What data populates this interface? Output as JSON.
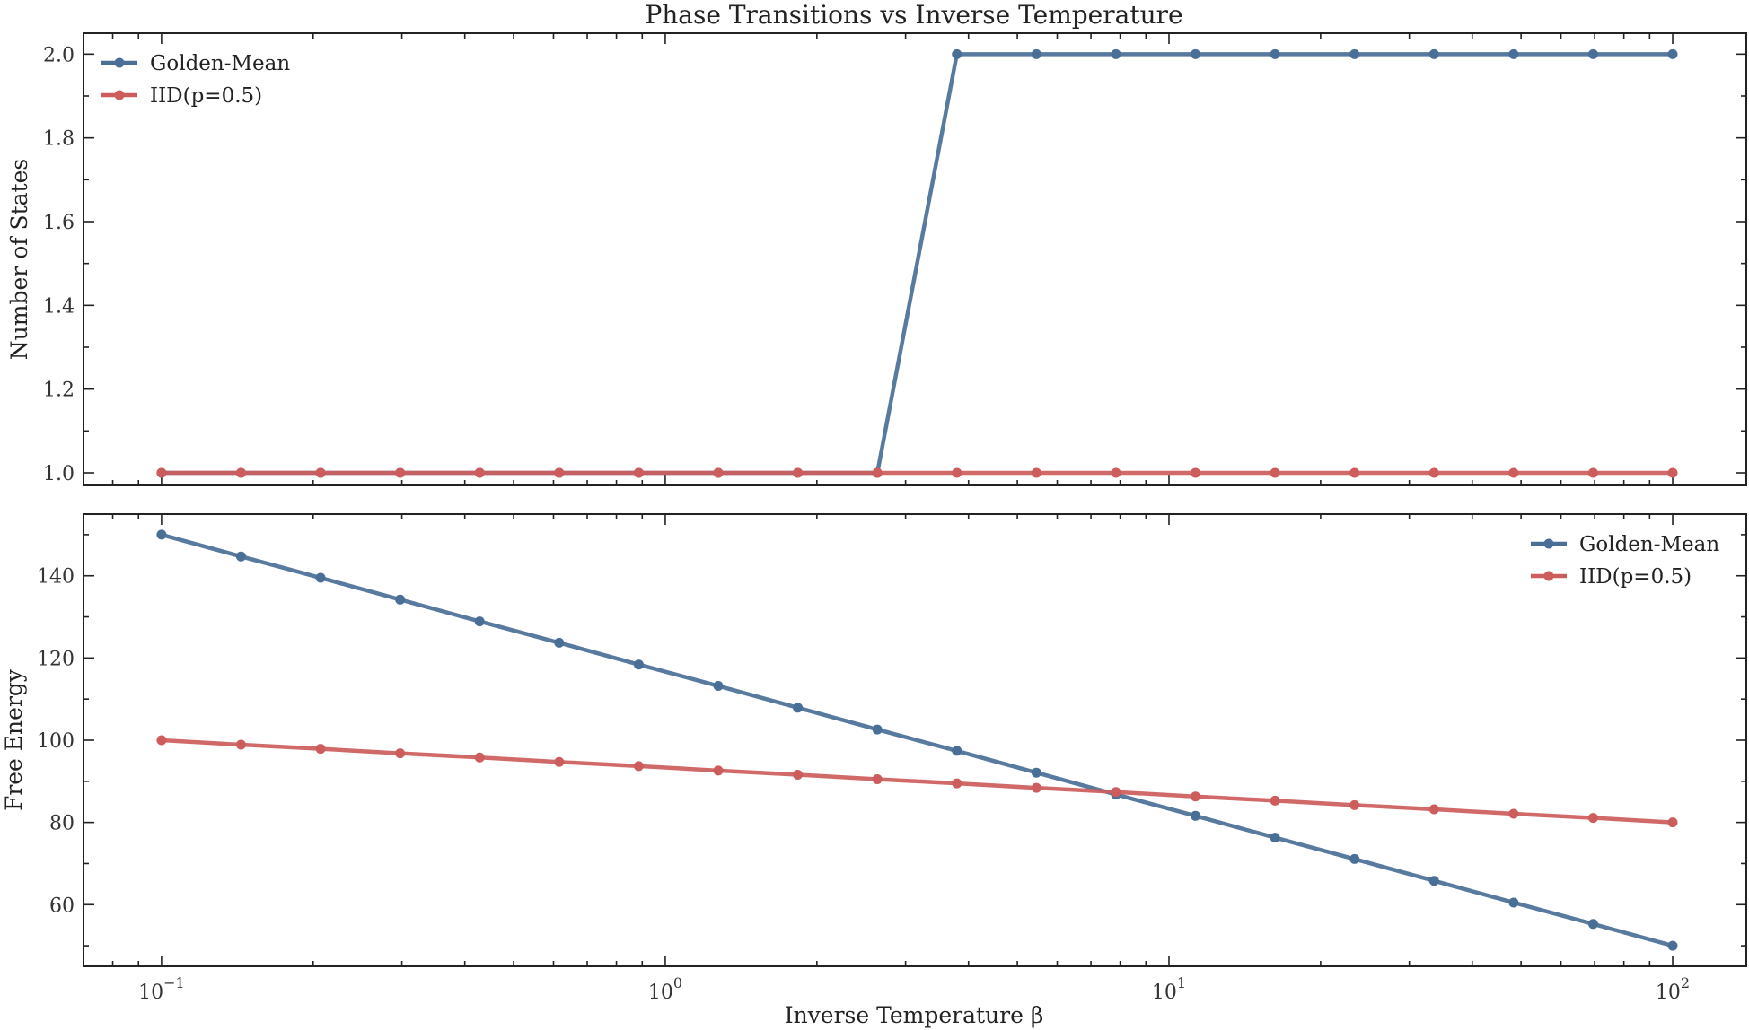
{
  "figure": {
    "title": "Phase Transitions vs Inverse Temperature",
    "xlabel": "Inverse Temperature β"
  },
  "colors": {
    "golden_mean": "#4a6f97",
    "iid": "#cd5c5c"
  },
  "chart_data": [
    {
      "type": "line",
      "ylabel": "Number of States",
      "xscale": "log",
      "xlim": [
        0.07,
        140
      ],
      "ylim": [
        0.97,
        2.05
      ],
      "yticks": [
        1.0,
        1.2,
        1.4,
        1.6,
        1.8,
        2.0
      ],
      "ytick_labels": [
        "1.0",
        "1.2",
        "1.4",
        "1.6",
        "1.8",
        "2.0"
      ],
      "legend": "top-left",
      "grid": false,
      "x": [
        0.1,
        0.1438,
        0.2069,
        0.2976,
        0.4281,
        0.6158,
        0.8859,
        1.2743,
        1.833,
        2.6367,
        3.7927,
        5.4556,
        7.8476,
        11.288,
        16.238,
        23.357,
        33.598,
        48.329,
        69.519,
        100.0
      ],
      "series": [
        {
          "name": "Golden-Mean",
          "color": "#4a6f97",
          "values": [
            1,
            1,
            1,
            1,
            1,
            1,
            1,
            1,
            1,
            1,
            2,
            2,
            2,
            2,
            2,
            2,
            2,
            2,
            2,
            2
          ]
        },
        {
          "name": "IID(p=0.5)",
          "color": "#cd5c5c",
          "values": [
            1,
            1,
            1,
            1,
            1,
            1,
            1,
            1,
            1,
            1,
            1,
            1,
            1,
            1,
            1,
            1,
            1,
            1,
            1,
            1
          ]
        }
      ]
    },
    {
      "type": "line",
      "ylabel": "Free Energy",
      "xscale": "log",
      "xlim": [
        0.07,
        140
      ],
      "ylim": [
        45,
        155
      ],
      "yticks": [
        60,
        80,
        100,
        120,
        140
      ],
      "ytick_labels": [
        "60",
        "80",
        "100",
        "120",
        "140"
      ],
      "xticks": [
        0.1,
        1,
        10,
        100
      ],
      "legend": "top-right",
      "grid": false,
      "x": [
        0.1,
        0.1438,
        0.2069,
        0.2976,
        0.4281,
        0.6158,
        0.8859,
        1.2743,
        1.833,
        2.6367,
        3.7927,
        5.4556,
        7.8476,
        11.288,
        16.238,
        23.357,
        33.598,
        48.329,
        69.519,
        100.0
      ],
      "series": [
        {
          "name": "Golden-Mean",
          "color": "#4a6f97",
          "values": [
            150.0,
            144.7,
            139.5,
            134.2,
            128.9,
            123.7,
            118.4,
            113.2,
            107.9,
            102.6,
            97.4,
            92.1,
            86.8,
            81.6,
            76.3,
            71.1,
            65.8,
            60.5,
            55.3,
            50.0
          ]
        },
        {
          "name": "IID(p=0.5)",
          "color": "#cd5c5c",
          "values": [
            100.0,
            98.9,
            97.9,
            96.8,
            95.8,
            94.7,
            93.7,
            92.6,
            91.6,
            90.5,
            89.5,
            88.4,
            87.4,
            86.3,
            85.3,
            84.2,
            83.2,
            82.1,
            81.1,
            80.0
          ]
        }
      ]
    }
  ]
}
